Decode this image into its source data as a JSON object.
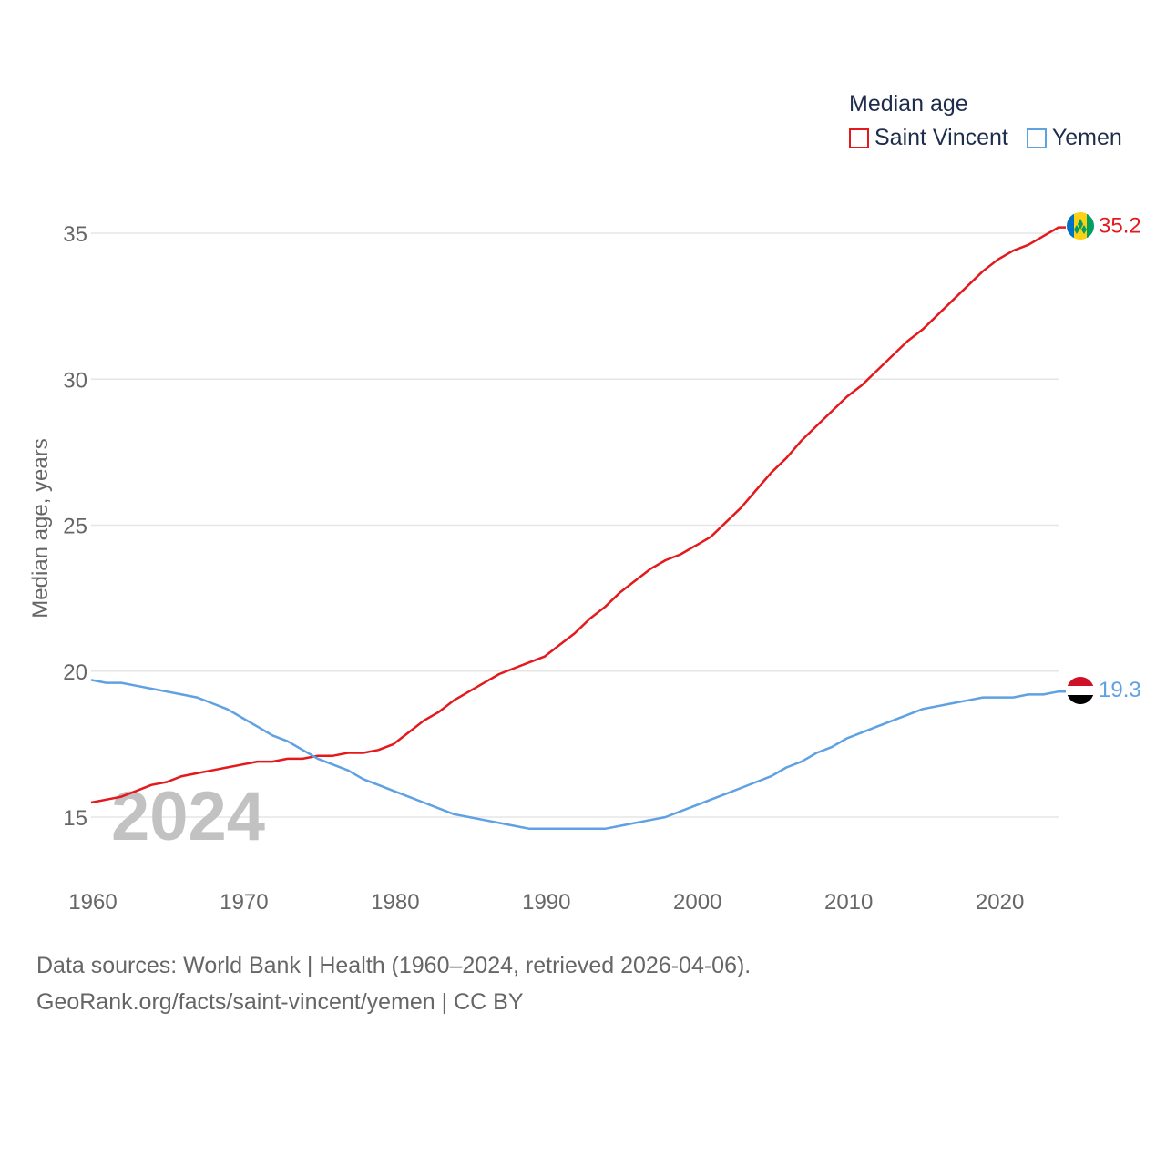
{
  "legend": {
    "title": "Median age",
    "items": [
      {
        "label": "Saint Vincent",
        "color": "#e3191c"
      },
      {
        "label": "Yemen",
        "color": "#5fa1e3"
      }
    ]
  },
  "source": {
    "line1": "Data sources: World Bank | Health (1960–2024, retrieved 2026-04-06).",
    "line2": "GeoRank.org/facts/saint-vincent/yemen | CC BY"
  },
  "chart_data": {
    "type": "line",
    "title": "Median age",
    "ylabel": "Median age, years",
    "xlabel": "",
    "year_label": "2024",
    "xlim": [
      1960,
      2024
    ],
    "ylim": [
      13.8,
      36
    ],
    "xticks": [
      1960,
      1970,
      1980,
      1990,
      2000,
      2010,
      2020
    ],
    "yticks": [
      15,
      20,
      25,
      30,
      35
    ],
    "grid": true,
    "series": [
      {
        "name": "Saint Vincent",
        "color": "#e3191c",
        "end_label": "35.2",
        "flag": "saint-vincent-flag",
        "x": [
          1960,
          1961,
          1962,
          1963,
          1964,
          1965,
          1966,
          1967,
          1968,
          1969,
          1970,
          1971,
          1972,
          1973,
          1974,
          1975,
          1976,
          1977,
          1978,
          1979,
          1980,
          1981,
          1982,
          1983,
          1984,
          1985,
          1986,
          1987,
          1988,
          1989,
          1990,
          1991,
          1992,
          1993,
          1994,
          1995,
          1996,
          1997,
          1998,
          1999,
          2000,
          2001,
          2002,
          2003,
          2004,
          2005,
          2006,
          2007,
          2008,
          2009,
          2010,
          2011,
          2012,
          2013,
          2014,
          2015,
          2016,
          2017,
          2018,
          2019,
          2020,
          2021,
          2022,
          2023,
          2024
        ],
        "values": [
          15.5,
          15.6,
          15.7,
          15.9,
          16.1,
          16.2,
          16.4,
          16.5,
          16.6,
          16.7,
          16.8,
          16.9,
          16.9,
          17.0,
          17.0,
          17.1,
          17.1,
          17.2,
          17.2,
          17.3,
          17.5,
          17.9,
          18.3,
          18.6,
          19.0,
          19.3,
          19.6,
          19.9,
          20.1,
          20.3,
          20.5,
          20.9,
          21.3,
          21.8,
          22.2,
          22.7,
          23.1,
          23.5,
          23.8,
          24.0,
          24.3,
          24.6,
          25.1,
          25.6,
          26.2,
          26.8,
          27.3,
          27.9,
          28.4,
          28.9,
          29.4,
          29.8,
          30.3,
          30.8,
          31.3,
          31.7,
          32.2,
          32.7,
          33.2,
          33.7,
          34.1,
          34.4,
          34.6,
          34.9,
          35.2
        ]
      },
      {
        "name": "Yemen",
        "color": "#5fa1e3",
        "end_label": "19.3",
        "flag": "yemen-flag",
        "x": [
          1960,
          1961,
          1962,
          1963,
          1964,
          1965,
          1966,
          1967,
          1968,
          1969,
          1970,
          1971,
          1972,
          1973,
          1974,
          1975,
          1976,
          1977,
          1978,
          1979,
          1980,
          1981,
          1982,
          1983,
          1984,
          1985,
          1986,
          1987,
          1988,
          1989,
          1990,
          1991,
          1992,
          1993,
          1994,
          1995,
          1996,
          1997,
          1998,
          1999,
          2000,
          2001,
          2002,
          2003,
          2004,
          2005,
          2006,
          2007,
          2008,
          2009,
          2010,
          2011,
          2012,
          2013,
          2014,
          2015,
          2016,
          2017,
          2018,
          2019,
          2020,
          2021,
          2022,
          2023,
          2024
        ],
        "values": [
          19.7,
          19.6,
          19.6,
          19.5,
          19.4,
          19.3,
          19.2,
          19.1,
          18.9,
          18.7,
          18.4,
          18.1,
          17.8,
          17.6,
          17.3,
          17.0,
          16.8,
          16.6,
          16.3,
          16.1,
          15.9,
          15.7,
          15.5,
          15.3,
          15.1,
          15.0,
          14.9,
          14.8,
          14.7,
          14.6,
          14.6,
          14.6,
          14.6,
          14.6,
          14.6,
          14.7,
          14.8,
          14.9,
          15.0,
          15.2,
          15.4,
          15.6,
          15.8,
          16.0,
          16.2,
          16.4,
          16.7,
          16.9,
          17.2,
          17.4,
          17.7,
          17.9,
          18.1,
          18.3,
          18.5,
          18.7,
          18.8,
          18.9,
          19.0,
          19.1,
          19.1,
          19.1,
          19.2,
          19.2,
          19.3
        ]
      }
    ]
  }
}
